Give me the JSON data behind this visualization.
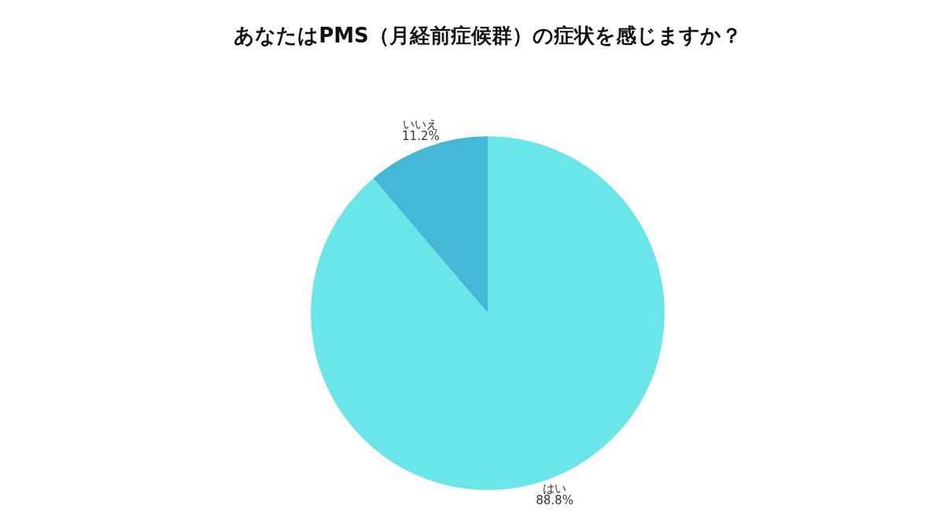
{
  "chart_data": {
    "type": "pie",
    "title": "あなたはPMS（月経前症候群）の症状を感じますか？",
    "categories": [
      "はい",
      "いいえ"
    ],
    "values": [
      88.8,
      11.2
    ],
    "value_labels": [
      "88.8%",
      "11.2%"
    ],
    "colors": [
      "#6ae5e8",
      "#44b8d6"
    ]
  }
}
